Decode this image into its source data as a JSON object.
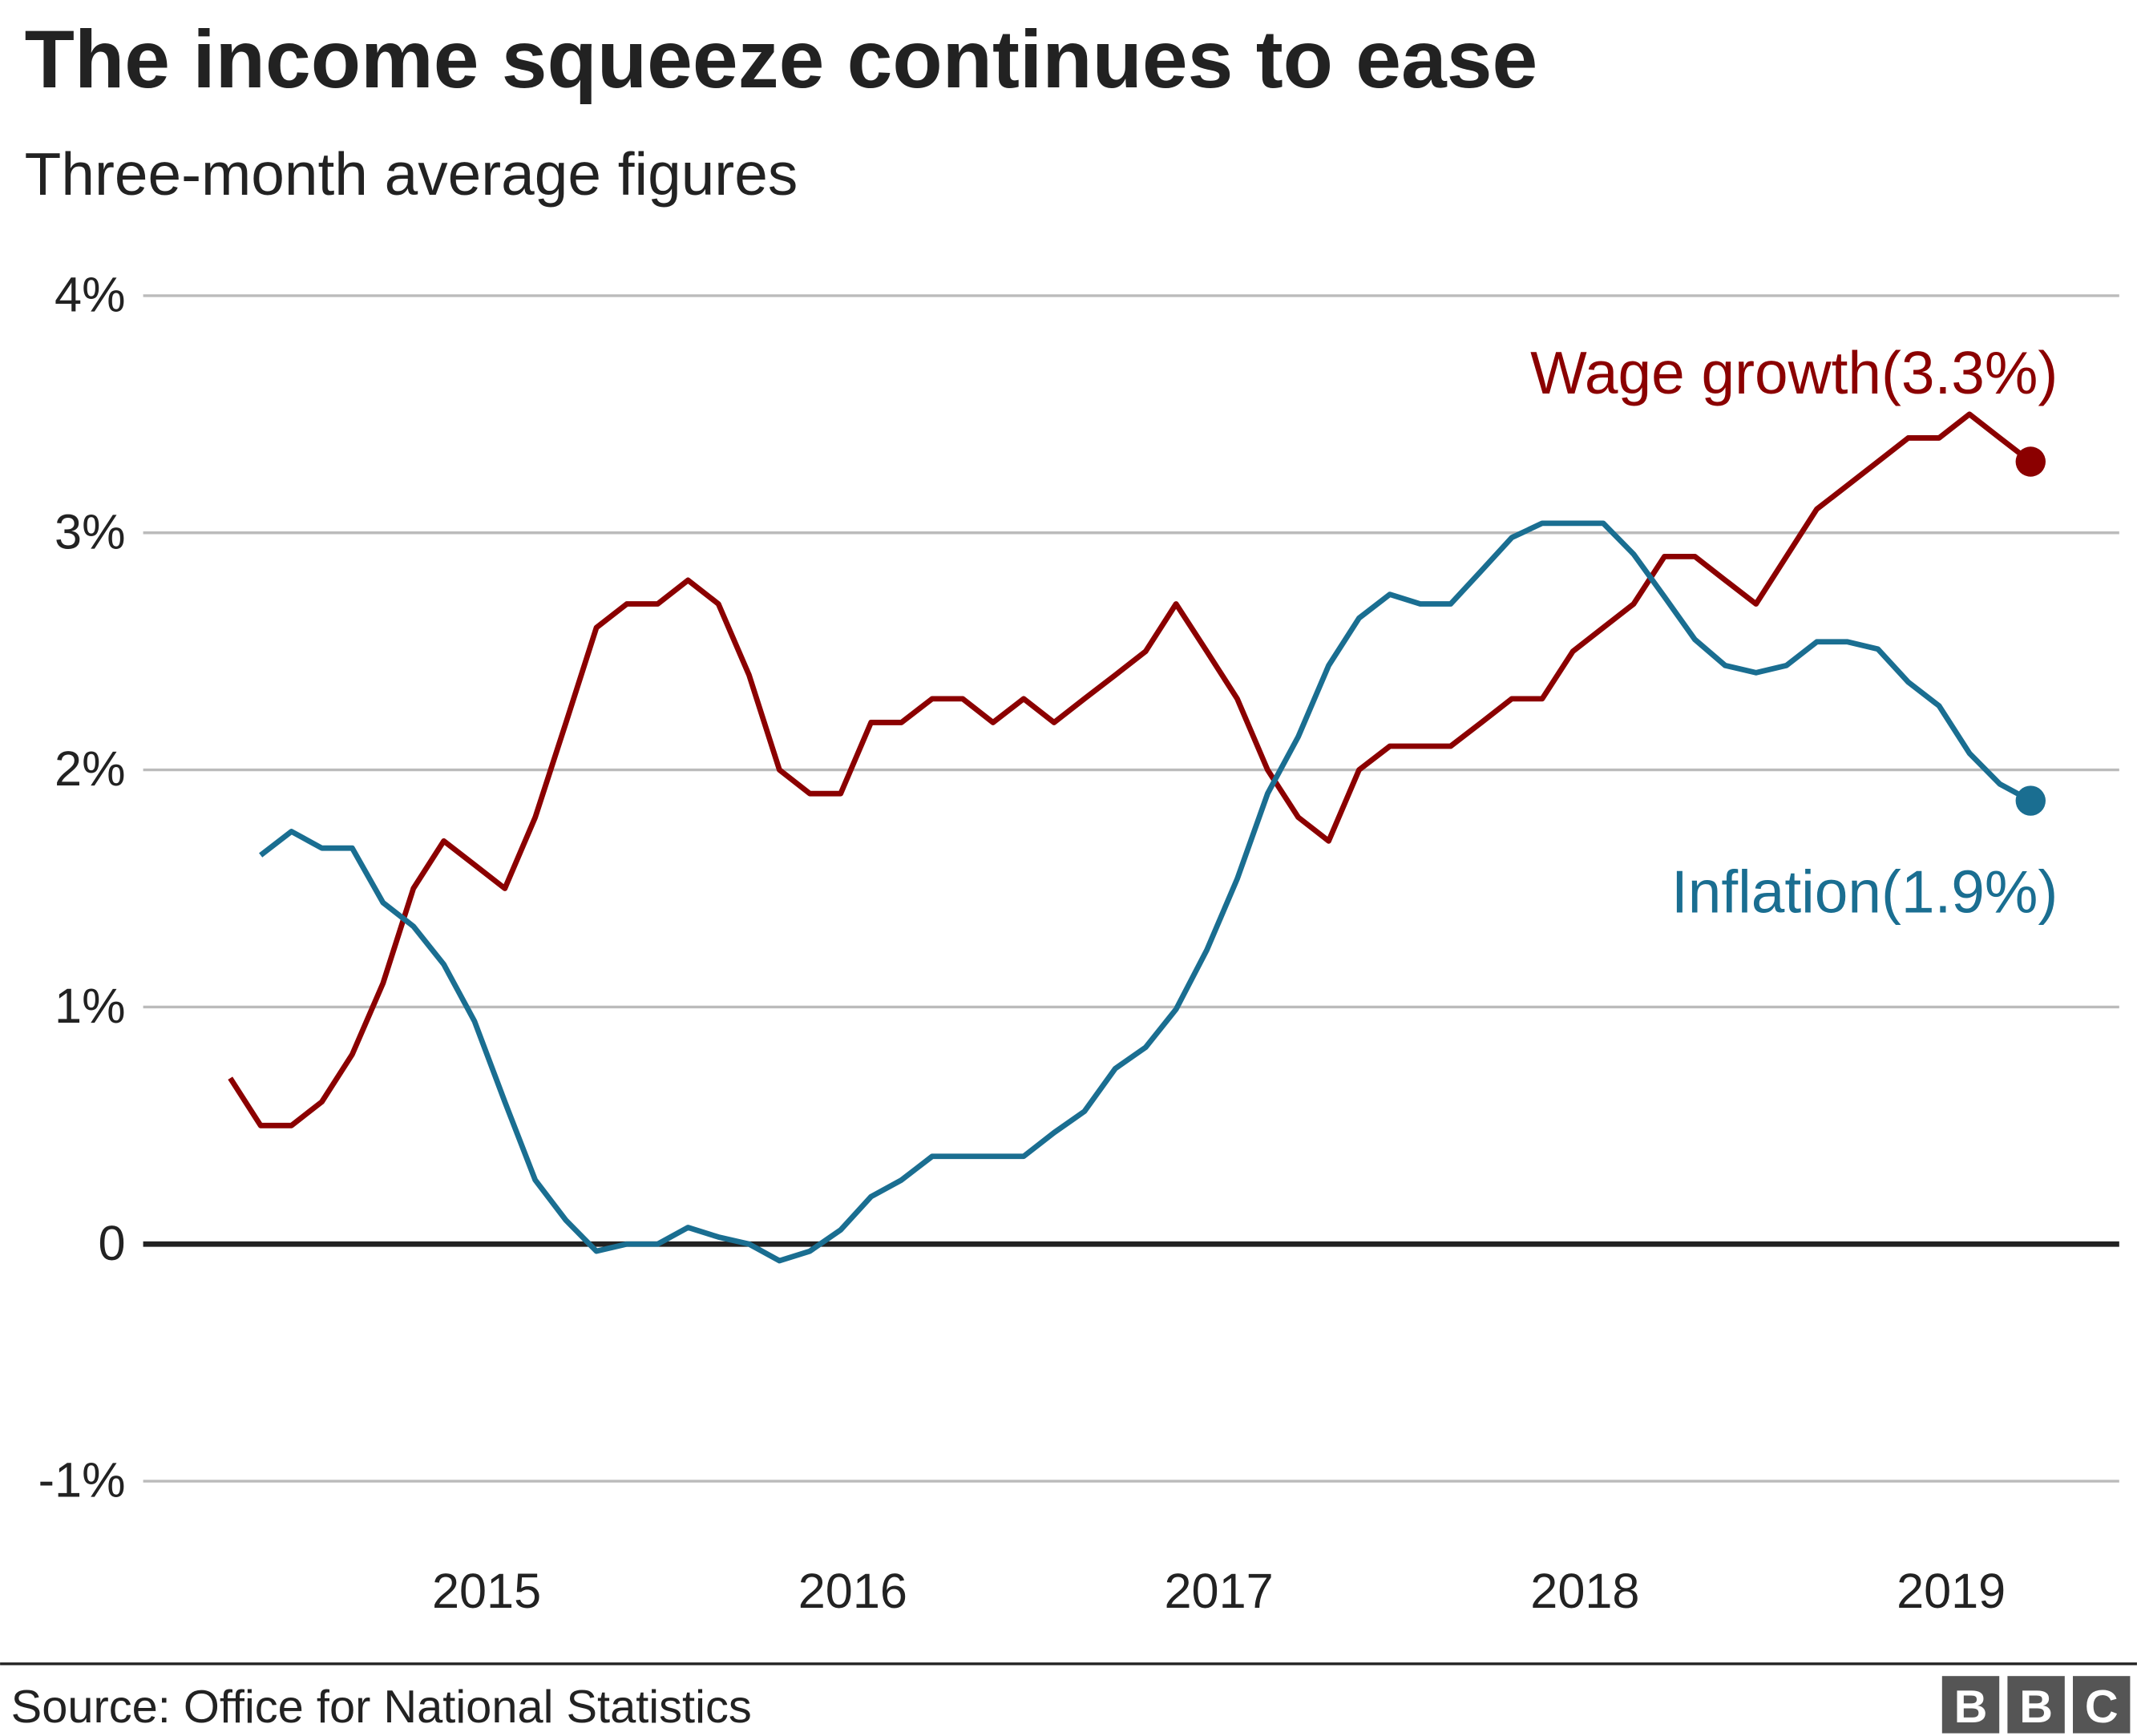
{
  "chart_data": {
    "type": "line",
    "title": "The income squeeze continues to ease",
    "subtitle": "Three-month average figures",
    "source": "Source: Office for National Statistics",
    "logo": [
      "B",
      "B",
      "C"
    ],
    "x": [
      2014.3,
      2014.383,
      2014.467,
      2014.55,
      2014.633,
      2014.717,
      2014.8,
      2014.883,
      2014.967,
      2015.05,
      2015.133,
      2015.217,
      2015.3,
      2015.383,
      2015.467,
      2015.55,
      2015.633,
      2015.717,
      2015.8,
      2015.883,
      2015.967,
      2016.05,
      2016.133,
      2016.217,
      2016.3,
      2016.383,
      2016.467,
      2016.55,
      2016.633,
      2016.717,
      2016.8,
      2016.883,
      2016.967,
      2017.05,
      2017.133,
      2017.217,
      2017.3,
      2017.383,
      2017.467,
      2017.55,
      2017.633,
      2017.717,
      2017.8,
      2017.883,
      2017.967,
      2018.05,
      2018.133,
      2018.217,
      2018.3,
      2018.383,
      2018.467,
      2018.55,
      2018.633,
      2018.717,
      2018.8,
      2018.883,
      2018.967,
      2019.05,
      2019.133,
      2019.217
    ],
    "series": [
      {
        "name": "Wage growth(3.3%)",
        "color": "#8b0000",
        "values": [
          0.7,
          0.5,
          0.5,
          0.6,
          0.8,
          1.1,
          1.5,
          1.7,
          1.6,
          1.5,
          1.8,
          2.2,
          2.6,
          2.7,
          2.7,
          2.8,
          2.7,
          2.4,
          2.0,
          1.9,
          1.9,
          2.2,
          2.2,
          2.3,
          2.3,
          2.2,
          2.3,
          2.2,
          2.3,
          2.4,
          2.5,
          2.7,
          2.5,
          2.3,
          2.0,
          1.8,
          1.7,
          2.0,
          2.1,
          2.1,
          2.1,
          2.2,
          2.3,
          2.3,
          2.5,
          2.6,
          2.7,
          2.9,
          2.9,
          2.8,
          2.7,
          2.9,
          3.1,
          3.2,
          3.3,
          3.4,
          3.4,
          3.5,
          3.4,
          3.3
        ]
      },
      {
        "name": "Inflation(1.9%)",
        "color": "#1a6e91",
        "values": [
          null,
          1.64,
          1.74,
          1.67,
          1.67,
          1.44,
          1.34,
          1.18,
          0.94,
          0.6,
          0.27,
          0.1,
          -0.03,
          0,
          0,
          0.07,
          0.03,
          0,
          -0.07,
          -0.03,
          0.06,
          0.2,
          0.27,
          0.37,
          0.37,
          0.37,
          0.37,
          0.47,
          0.56,
          0.74,
          0.83,
          0.99,
          1.24,
          1.54,
          1.9,
          2.14,
          2.44,
          2.64,
          2.74,
          2.7,
          2.7,
          2.84,
          2.98,
          3.04,
          3.04,
          3.04,
          2.91,
          2.73,
          2.55,
          2.44,
          2.41,
          2.44,
          2.54,
          2.54,
          2.51,
          2.37,
          2.27,
          2.07,
          1.94,
          1.87
        ]
      }
    ],
    "xlim": [
      2014.062,
      2019.459
    ],
    "xticks": [
      2015,
      2016,
      2017,
      2018,
      2019
    ],
    "ylim": [
      -1.2,
      4.3
    ],
    "yticks": [
      {
        "value": -1,
        "label": "-1%"
      },
      0,
      {
        "value": 1,
        "label": "1%"
      },
      {
        "value": 2,
        "label": "2%"
      },
      {
        "value": 3,
        "label": "3%"
      },
      {
        "value": 4,
        "label": "4%"
      }
    ],
    "grid": true
  }
}
